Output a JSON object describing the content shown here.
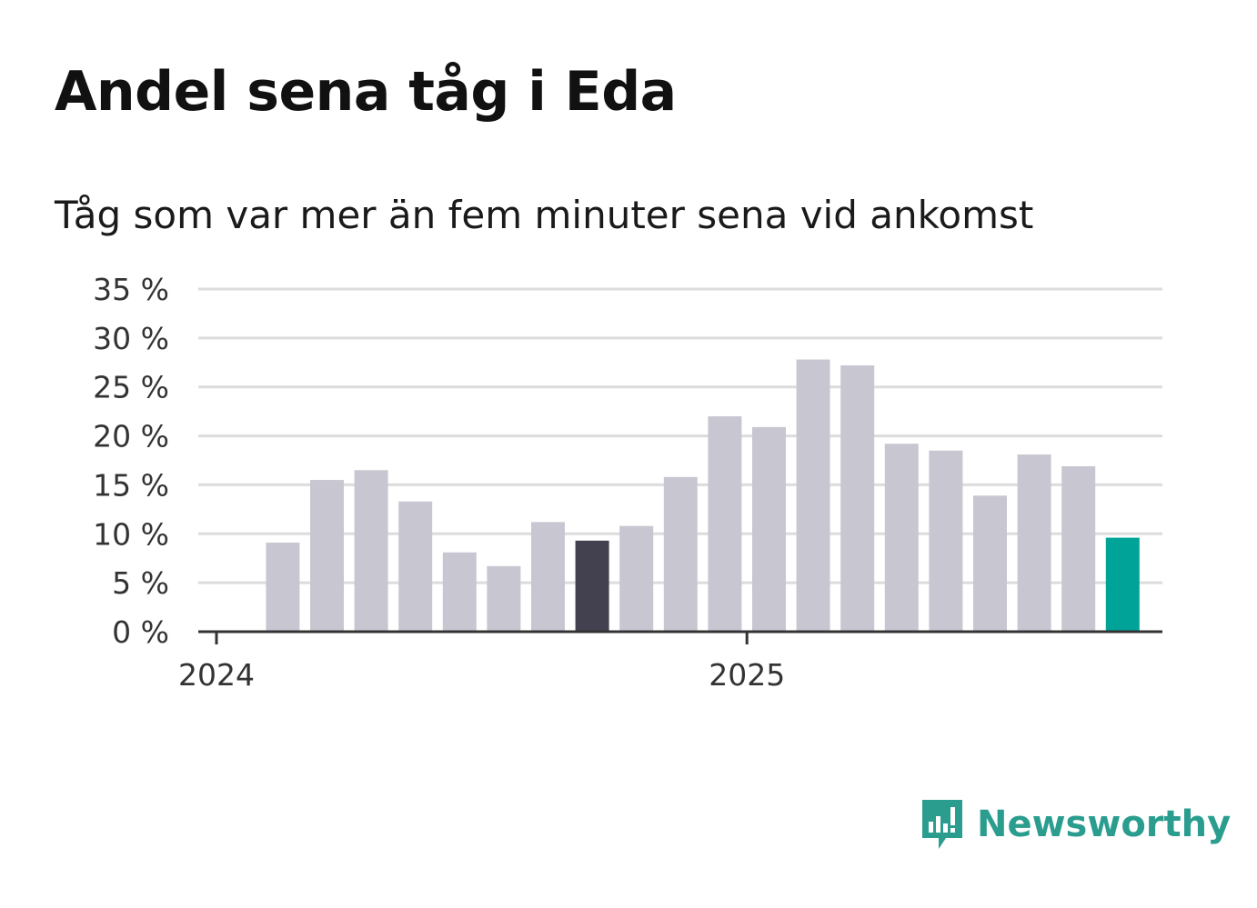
{
  "title": "Andel sena tåg i Eda",
  "subtitle": "Tåg som var mer än fem minuter sena vid ankomst",
  "brand": {
    "name": "Newsworthy",
    "color": "#2a9d8f"
  },
  "colors": {
    "default_bar": "#c8c7d1",
    "highlight_bar": "#43414f",
    "latest_bar": "#00a398",
    "grid": "#dcdcdc",
    "axis": "#333333"
  },
  "chart_data": {
    "type": "bar",
    "title": "Andel sena tåg i Eda",
    "subtitle": "Tåg som var mer än fem minuter sena vid ankomst",
    "xlabel": "",
    "ylabel": "",
    "ylim": [
      0,
      35
    ],
    "yticks": [
      0,
      5,
      10,
      15,
      20,
      25,
      30,
      35
    ],
    "ytick_labels": [
      "0 %",
      "5 %",
      "10 %",
      "15 %",
      "20 %",
      "25 %",
      "30 %",
      "35 %"
    ],
    "xtick_labels": [
      {
        "label": "2024",
        "index": 0
      },
      {
        "label": "2025",
        "index": 12
      }
    ],
    "categories": [
      "2024-01",
      "2024-02",
      "2024-03",
      "2024-04",
      "2024-05",
      "2024-06",
      "2024-07",
      "2024-08",
      "2024-09",
      "2024-10",
      "2024-11",
      "2024-12",
      "2025-01",
      "2025-02",
      "2025-03",
      "2025-04",
      "2025-05",
      "2025-06",
      "2025-07",
      "2025-08",
      "2025-09",
      "2025-10",
      "2025-11",
      "2025-12"
    ],
    "values": [
      null,
      9.1,
      15.5,
      16.5,
      13.3,
      8.1,
      6.7,
      11.2,
      9.3,
      10.8,
      15.8,
      22.0,
      20.9,
      27.8,
      27.2,
      19.2,
      18.5,
      13.9,
      18.1,
      16.9,
      9.6,
      null,
      null,
      null
    ],
    "highlight_index": 8,
    "latest_index": 20,
    "grid": true,
    "legend": "none"
  }
}
